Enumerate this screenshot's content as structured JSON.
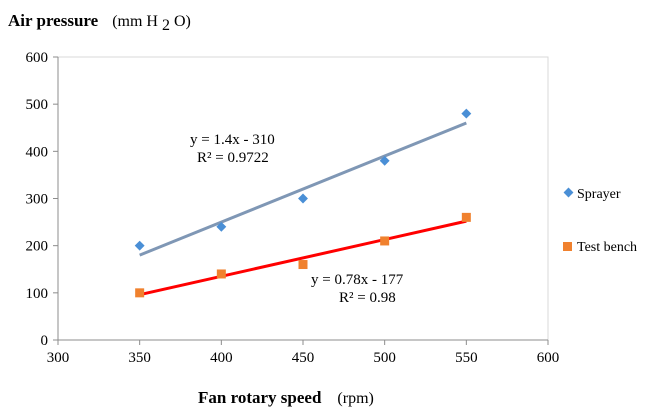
{
  "chart_data": {
    "type": "scatter",
    "ylabel": "Air pressure",
    "ylabel_unit_prefix": "(mm H",
    "ylabel_unit_sub": "2",
    "ylabel_unit_suffix": "O)",
    "xlabel": "Fan rotary speed",
    "xlabel_unit": "(rpm)",
    "xlim": [
      300,
      600
    ],
    "ylim": [
      0,
      600
    ],
    "xticks": [
      300,
      350,
      400,
      450,
      500,
      550,
      600
    ],
    "yticks": [
      0,
      100,
      200,
      300,
      400,
      500,
      600
    ],
    "grid": false,
    "legend_position": "right",
    "series": [
      {
        "name": "Sprayer",
        "marker": "diamond",
        "color": "#4a8fd6",
        "trend_color": "#7f97b5",
        "x": [
          350,
          400,
          450,
          500,
          550
        ],
        "y": [
          200,
          240,
          300,
          380,
          480
        ],
        "trend": {
          "slope": 1.4,
          "intercept": -310
        },
        "equation": "y = 1.4x - 310",
        "r2": "R² = 0.9722"
      },
      {
        "name": "Test bench",
        "marker": "square",
        "color": "#f0812e",
        "trend_color": "#ff0000",
        "x": [
          350,
          400,
          450,
          500,
          550
        ],
        "y": [
          100,
          140,
          160,
          210,
          260
        ],
        "trend": {
          "slope": 0.78,
          "intercept": -177
        },
        "equation": "y = 0.78x - 177",
        "r2": "R² = 0.98"
      }
    ]
  }
}
